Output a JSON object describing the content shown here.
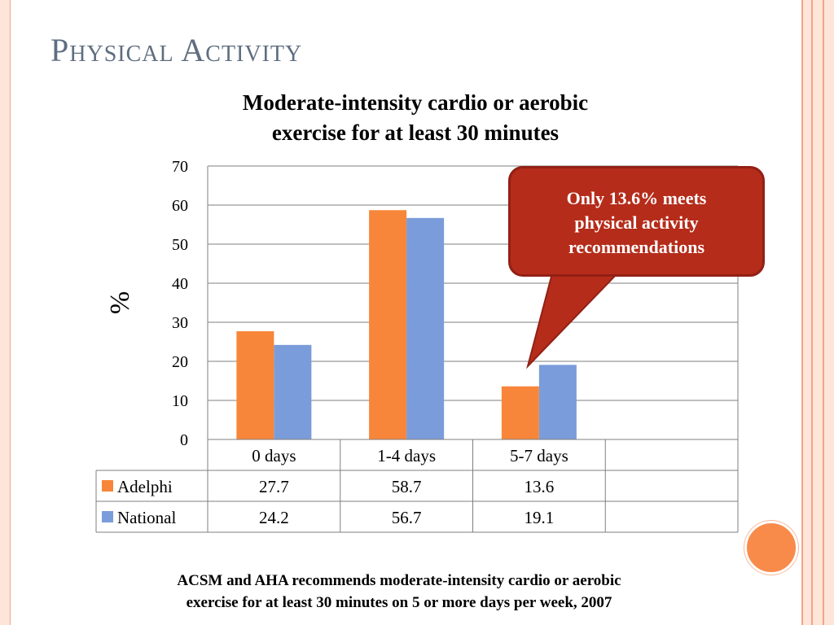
{
  "slide": {
    "title": "Physical Activity",
    "footnote": [
      "ACSM and AHA recommends moderate-intensity cardio or aerobic",
      "exercise for at least 30 minutes on 5 or more days per week, 2007"
    ]
  },
  "callout": {
    "lines": [
      "Only 13.6% meets",
      "physical activity",
      "recommendations"
    ]
  },
  "colors": {
    "adelphi": "#f7863a",
    "national": "#7b9cda",
    "callout_fill": "#b52c1a",
    "title": "#5f6e80"
  },
  "chart_data": {
    "type": "bar",
    "title_lines": [
      "Moderate-intensity cardio or aerobic",
      "exercise for at least 30 minutes"
    ],
    "ylabel": "%",
    "xlabel": "",
    "categories": [
      "0 days",
      "1-4 days",
      "5-7 days",
      ""
    ],
    "series": [
      {
        "name": "Adelphi",
        "values": [
          27.7,
          58.7,
          13.6,
          null
        ],
        "labels": [
          "27.7",
          "58.7",
          "13.6",
          ""
        ]
      },
      {
        "name": "National",
        "values": [
          24.2,
          56.7,
          19.1,
          null
        ],
        "labels": [
          "24.2",
          "56.7",
          "19.1",
          ""
        ]
      }
    ],
    "ylim": [
      0,
      70
    ],
    "yticks": [
      "0",
      "10",
      "20",
      "30",
      "40",
      "50",
      "60",
      "70"
    ],
    "grid": true,
    "legend": "data-table"
  }
}
